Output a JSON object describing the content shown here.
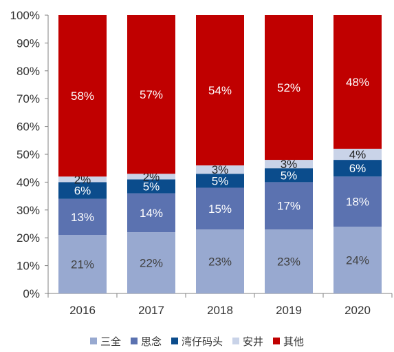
{
  "chart_data": {
    "type": "bar",
    "stacked": true,
    "categories": [
      "2016",
      "2017",
      "2018",
      "2019",
      "2020"
    ],
    "ylim": [
      0,
      100
    ],
    "yticks": [
      "0%",
      "10%",
      "20%",
      "30%",
      "40%",
      "50%",
      "60%",
      "70%",
      "80%",
      "90%",
      "100%"
    ],
    "grid": false,
    "legend_position": "bottom",
    "series": [
      {
        "name": "三全",
        "color": "#98A9D0",
        "label_color": "#404040",
        "values": [
          21,
          22,
          23,
          23,
          24
        ],
        "labels": [
          "21%",
          "22%",
          "23%",
          "23%",
          "24%"
        ]
      },
      {
        "name": "思念",
        "color": "#5B72B0",
        "label_color": "#ffffff",
        "values": [
          13,
          14,
          15,
          17,
          18
        ],
        "labels": [
          "13%",
          "14%",
          "15%",
          "17%",
          "18%"
        ]
      },
      {
        "name": "湾仔码头",
        "color": "#0B4C8C",
        "label_color": "#ffffff",
        "values": [
          6,
          5,
          5,
          5,
          6
        ],
        "labels": [
          "6%",
          "5%",
          "5%",
          "5%",
          "6%"
        ]
      },
      {
        "name": "安井",
        "color": "#C9D3E8",
        "label_color": "#222222",
        "values": [
          2,
          2,
          3,
          3,
          4
        ],
        "labels": [
          "2%",
          "2%",
          "3%",
          "3%",
          "4%"
        ]
      },
      {
        "name": "其他",
        "color": "#C00000",
        "label_color": "#ffffff",
        "values": [
          58,
          57,
          54,
          52,
          48
        ],
        "labels": [
          "58%",
          "57%",
          "54%",
          "52%",
          "48%"
        ]
      }
    ]
  }
}
